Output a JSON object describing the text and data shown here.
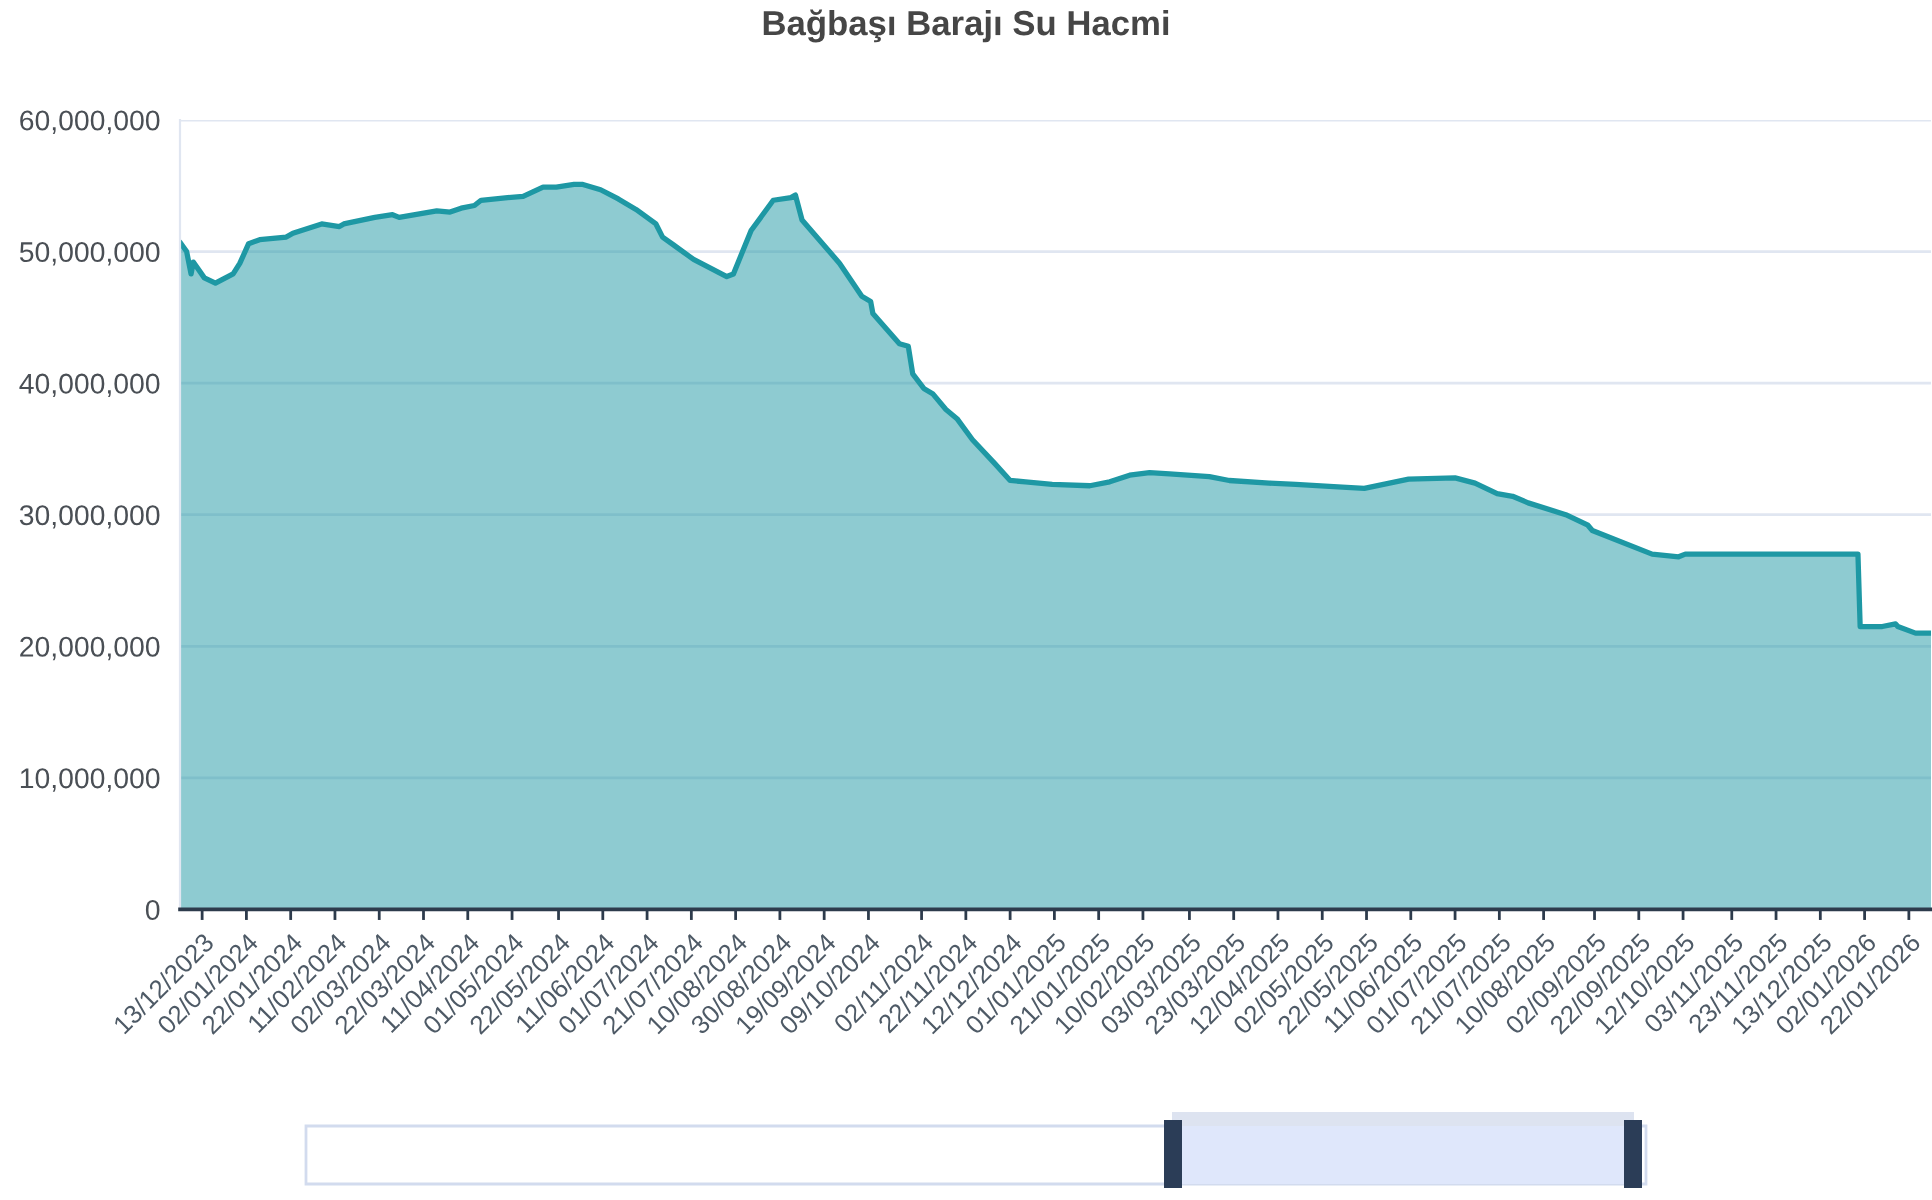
{
  "chart_data": {
    "type": "area",
    "title": "Bağbaşı Barajı Su Hacmi",
    "x": [
      "2023-12-03",
      "2023-12-06",
      "2023-12-08",
      "2023-12-09",
      "2023-12-14",
      "2023-12-19",
      "2023-12-27",
      "2023-12-30",
      "2024-01-03",
      "2024-01-08",
      "2024-01-20",
      "2024-01-23",
      "2024-02-05",
      "2024-02-13",
      "2024-02-15",
      "2024-02-29",
      "2024-03-08",
      "2024-03-11",
      "2024-03-28",
      "2024-04-03",
      "2024-04-08",
      "2024-04-14",
      "2024-04-17",
      "2024-04-29",
      "2024-05-06",
      "2024-05-15",
      "2024-05-21",
      "2024-05-29",
      "2024-06-02",
      "2024-06-10",
      "2024-06-18",
      "2024-06-26",
      "2024-07-05",
      "2024-07-08",
      "2024-07-13",
      "2024-07-22",
      "2024-08-06",
      "2024-08-09",
      "2024-08-17",
      "2024-08-27",
      "2024-09-04",
      "2024-09-06",
      "2024-09-09",
      "2024-09-26",
      "2024-10-06",
      "2024-10-10",
      "2024-10-11",
      "2024-10-23",
      "2024-10-27",
      "2024-10-29",
      "2024-11-03",
      "2024-11-07",
      "2024-11-13",
      "2024-11-18",
      "2024-11-25",
      "2024-12-05",
      "2024-12-12",
      "2024-12-19",
      "2024-12-31",
      "2025-01-17",
      "2025-01-26",
      "2025-02-04",
      "2025-02-13",
      "2025-02-22",
      "2025-03-12",
      "2025-03-21",
      "2025-04-08",
      "2025-04-20",
      "2025-05-11",
      "2025-05-21",
      "2025-06-10",
      "2025-07-01",
      "2025-07-10",
      "2025-07-20",
      "2025-07-27",
      "2025-08-03",
      "2025-08-20",
      "2025-08-30",
      "2025-09-01",
      "2025-09-28",
      "2025-10-10",
      "2025-10-13",
      "2025-11-10",
      "2025-12-30",
      "2025-12-31",
      "2026-01-10",
      "2026-01-16",
      "2026-01-17",
      "2026-01-25",
      "2026-02-01"
    ],
    "series": [
      {
        "color": "#1e98a4",
        "values": [
          50700000,
          50000000,
          48300000,
          49200000,
          48000000,
          47600000,
          48300000,
          49100000,
          50600000,
          50900000,
          51100000,
          51400000,
          52100000,
          51900000,
          52100000,
          52600000,
          52800000,
          52600000,
          53100000,
          53000000,
          53300000,
          53500000,
          53900000,
          54100000,
          54200000,
          54900000,
          54900000,
          55100000,
          55100000,
          54700000,
          54000000,
          53200000,
          52100000,
          51100000,
          50500000,
          49400000,
          48100000,
          48300000,
          51600000,
          53900000,
          54100000,
          54300000,
          52400000,
          49100000,
          46600000,
          46200000,
          45300000,
          43000000,
          42800000,
          40700000,
          39600000,
          39200000,
          38000000,
          37300000,
          35700000,
          33900000,
          32600000,
          32500000,
          32300000,
          32200000,
          32500000,
          33000000,
          33200000,
          33100000,
          32900000,
          32600000,
          32400000,
          32300000,
          32100000,
          32000000,
          32700000,
          32800000,
          32400000,
          31600000,
          31400000,
          30900000,
          30000000,
          29200000,
          28800000,
          27000000,
          26800000,
          27000000,
          27000000,
          27000000,
          21500000,
          21500000,
          21700000,
          21500000,
          21000000,
          21000000
        ]
      }
    ],
    "xlim": [
      "2023-12-03",
      "2026-02-01"
    ],
    "xticks": [
      {
        "value": "2023-12-13",
        "label": "13/12/2023"
      },
      {
        "value": "2024-01-02",
        "label": "02/01/2024"
      },
      {
        "value": "2024-01-22",
        "label": "22/01/2024"
      },
      {
        "value": "2024-02-11",
        "label": "11/02/2024"
      },
      {
        "value": "2024-03-02",
        "label": "02/03/2024"
      },
      {
        "value": "2024-03-22",
        "label": "22/03/2024"
      },
      {
        "value": "2024-04-11",
        "label": "11/04/2024"
      },
      {
        "value": "2024-05-01",
        "label": "01/05/2024"
      },
      {
        "value": "2024-05-22",
        "label": "22/05/2024"
      },
      {
        "value": "2024-06-11",
        "label": "11/06/2024"
      },
      {
        "value": "2024-07-01",
        "label": "01/07/2024"
      },
      {
        "value": "2024-07-21",
        "label": "21/07/2024"
      },
      {
        "value": "2024-08-10",
        "label": "10/08/2024"
      },
      {
        "value": "2024-08-30",
        "label": "30/08/2024"
      },
      {
        "value": "2024-09-19",
        "label": "19/09/2024"
      },
      {
        "value": "2024-10-09",
        "label": "09/10/2024"
      },
      {
        "value": "2024-11-02",
        "label": "02/11/2024"
      },
      {
        "value": "2024-11-22",
        "label": "22/11/2024"
      },
      {
        "value": "2024-12-12",
        "label": "12/12/2024"
      },
      {
        "value": "2025-01-01",
        "label": "01/01/2025"
      },
      {
        "value": "2025-01-21",
        "label": "21/01/2025"
      },
      {
        "value": "2025-02-10",
        "label": "10/02/2025"
      },
      {
        "value": "2025-03-03",
        "label": "03/03/2025"
      },
      {
        "value": "2025-03-23",
        "label": "23/03/2025"
      },
      {
        "value": "2025-04-12",
        "label": "12/04/2025"
      },
      {
        "value": "2025-05-02",
        "label": "02/05/2025"
      },
      {
        "value": "2025-05-22",
        "label": "22/05/2025"
      },
      {
        "value": "2025-06-11",
        "label": "11/06/2025"
      },
      {
        "value": "2025-07-01",
        "label": "01/07/2025"
      },
      {
        "value": "2025-07-21",
        "label": "21/07/2025"
      },
      {
        "value": "2025-08-10",
        "label": "10/08/2025"
      },
      {
        "value": "2025-09-02",
        "label": "02/09/2025"
      },
      {
        "value": "2025-09-22",
        "label": "22/09/2025"
      },
      {
        "value": "2025-10-12",
        "label": "12/10/2025"
      },
      {
        "value": "2025-11-03",
        "label": "03/11/2025"
      },
      {
        "value": "2025-11-23",
        "label": "23/11/2025"
      },
      {
        "value": "2025-12-13",
        "label": "13/12/2025"
      },
      {
        "value": "2026-01-02",
        "label": "02/01/2026"
      },
      {
        "value": "2026-01-22",
        "label": "22/01/2026"
      }
    ],
    "ylim": [
      0,
      60000000
    ],
    "yticks": [
      0,
      {
        "value": 10000000,
        "label": "10,000,000"
      },
      {
        "value": 20000000,
        "label": "20,000,000"
      },
      {
        "value": 30000000,
        "label": "30,000,000"
      },
      {
        "value": 40000000,
        "label": "40,000,000"
      },
      {
        "value": 50000000,
        "label": "50,000,000"
      },
      {
        "value": 60000000,
        "label": "60,000,000"
      }
    ],
    "grid": "y",
    "line_style": "solid"
  }
}
